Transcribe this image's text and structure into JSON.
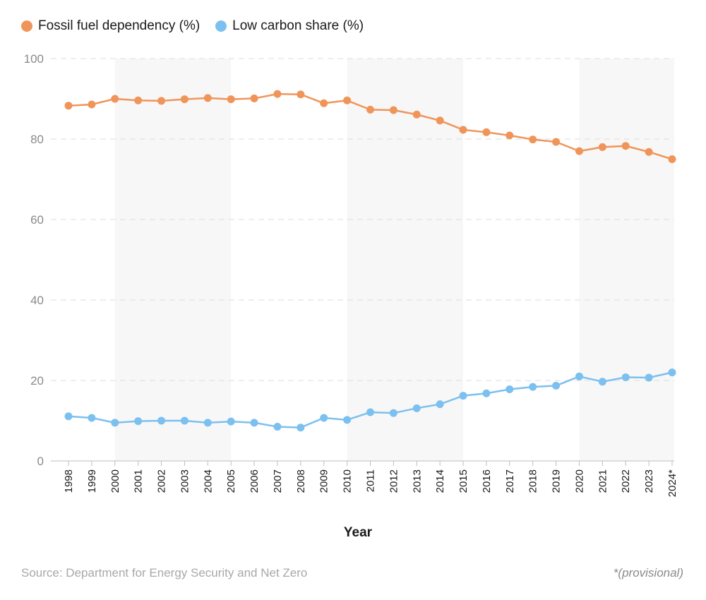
{
  "legend": {
    "series1_label": "Fossil fuel dependency (%)",
    "series2_label": "Low carbon share (%)"
  },
  "footer": {
    "source": "Source: Department for Energy Security and Net Zero",
    "note": "*(provisional)"
  },
  "chart_data": {
    "type": "line",
    "title": "",
    "xlabel": "Year",
    "ylabel": "",
    "ylim": [
      0,
      100
    ],
    "yticks": [
      0,
      20,
      40,
      60,
      80,
      100
    ],
    "grid": true,
    "legend_position": "top-left",
    "categories": [
      "1998",
      "1999",
      "2000",
      "2001",
      "2002",
      "2003",
      "2004",
      "2005",
      "2006",
      "2007",
      "2008",
      "2009",
      "2010",
      "2011",
      "2012",
      "2013",
      "2014",
      "2015",
      "2016",
      "2017",
      "2018",
      "2019",
      "2020",
      "2021",
      "2022",
      "2023",
      "2024*"
    ],
    "series": [
      {
        "name": "Fossil fuel dependency (%)",
        "color": "#f0955a",
        "values": [
          88.3,
          88.6,
          90.0,
          89.6,
          89.5,
          89.9,
          90.2,
          89.9,
          90.1,
          91.2,
          91.1,
          88.9,
          89.6,
          87.3,
          87.2,
          86.1,
          84.6,
          82.3,
          81.7,
          80.9,
          79.9,
          79.3,
          77.0,
          78.0,
          78.3,
          76.8,
          75.0
        ]
      },
      {
        "name": "Low carbon share (%)",
        "color": "#7cc0ef",
        "values": [
          11.1,
          10.7,
          9.5,
          9.9,
          10.0,
          10.0,
          9.5,
          9.8,
          9.5,
          8.5,
          8.3,
          10.7,
          10.2,
          12.1,
          11.9,
          13.1,
          14.1,
          16.2,
          16.8,
          17.8,
          18.4,
          18.7,
          21.0,
          19.7,
          20.8,
          20.7,
          22.0
        ]
      }
    ],
    "shaded_bands": [
      [
        "2000",
        "2005"
      ],
      [
        "2010",
        "2015"
      ],
      [
        "2020",
        "2024*"
      ]
    ]
  }
}
